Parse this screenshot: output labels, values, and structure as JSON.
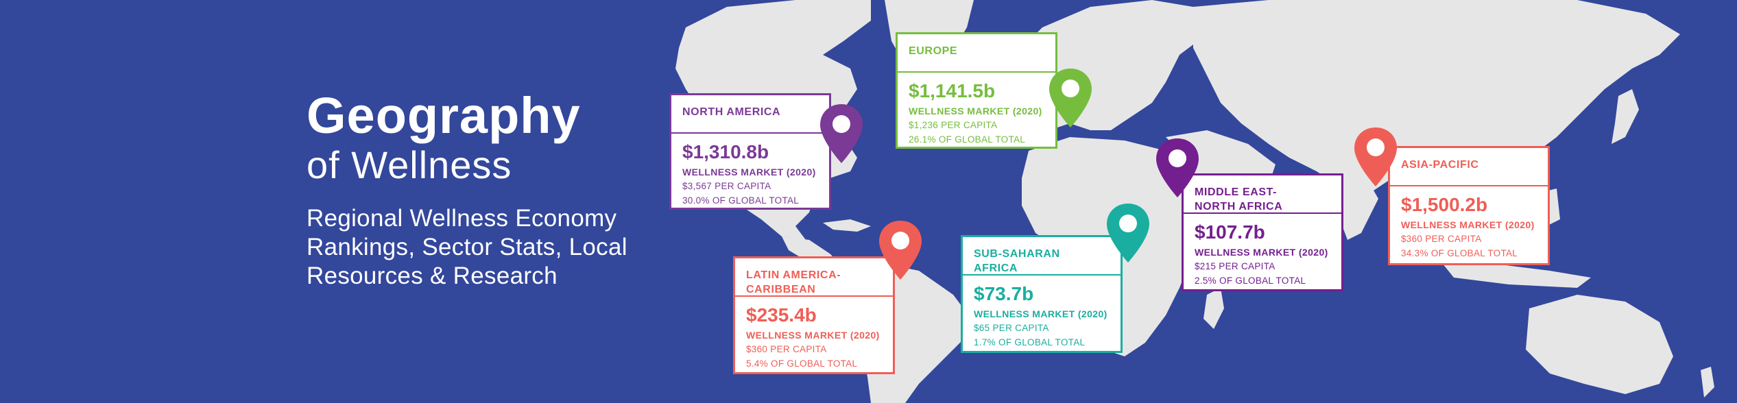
{
  "headline": {
    "title": "Geography",
    "subtitle": "of Wellness",
    "description": "Regional Wellness Economy Rankings, Sector Stats, Local Resources & Research"
  },
  "colors": {
    "background": "#33479b",
    "land": "#e6e6e6",
    "north_america": "#7a3a96",
    "europe": "#76bd3e",
    "latin_america": "#ef5e56",
    "sub_saharan": "#1aaea0",
    "mena": "#741f8f",
    "asia_pacific": "#ef5e56"
  },
  "regions": {
    "north_america": {
      "name": "NORTH AMERICA",
      "value": "$1,310.8b",
      "market_label": "WELLNESS MARKET (2020)",
      "per_capita": "$3,567 PER CAPITA",
      "share": "30.0% OF GLOBAL TOTAL",
      "pin_icon": "map-pin-icon"
    },
    "europe": {
      "name": "EUROPE",
      "value": "$1,141.5b",
      "market_label": "WELLNESS MARKET (2020)",
      "per_capita": "$1,236 PER CAPITA",
      "share": "26.1% OF GLOBAL TOTAL",
      "pin_icon": "map-pin-icon"
    },
    "latin_america": {
      "name": "LATIN AMERICA-\nCARIBBEAN",
      "value": "$235.4b",
      "market_label": "WELLNESS MARKET (2020)",
      "per_capita": "$360 PER CAPITA",
      "share": "5.4% OF GLOBAL TOTAL",
      "pin_icon": "map-pin-icon"
    },
    "sub_saharan": {
      "name": "SUB-SAHARAN\nAFRICA",
      "value": "$73.7b",
      "market_label": "WELLNESS MARKET (2020)",
      "per_capita": "$65 PER CAPITA",
      "share": "1.7% OF GLOBAL TOTAL",
      "pin_icon": "map-pin-icon"
    },
    "mena": {
      "name": "MIDDLE EAST-\nNORTH AFRICA",
      "value": "$107.7b",
      "market_label": "WELLNESS MARKET (2020)",
      "per_capita": "$215 PER CAPITA",
      "share": "2.5% OF GLOBAL TOTAL",
      "pin_icon": "map-pin-icon"
    },
    "asia_pacific": {
      "name": "ASIA-PACIFIC",
      "value": "$1,500.2b",
      "market_label": "WELLNESS MARKET (2020)",
      "per_capita": "$360 PER CAPITA",
      "share": "34.3% OF GLOBAL TOTAL",
      "pin_icon": "map-pin-icon"
    }
  }
}
